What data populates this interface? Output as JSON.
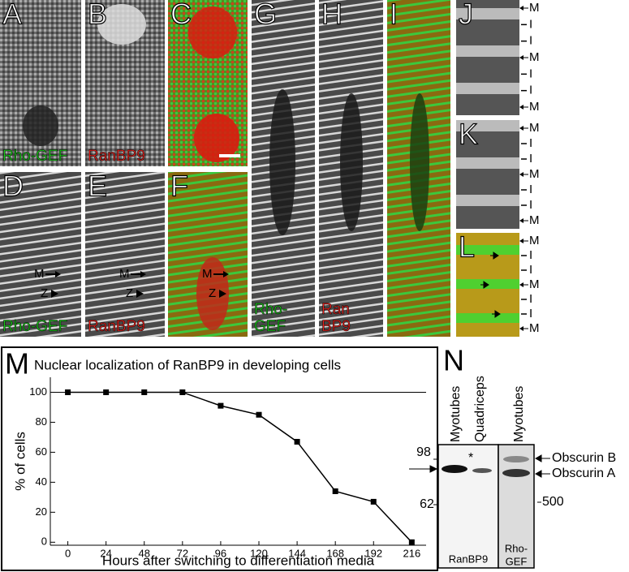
{
  "panels": [
    {
      "letter": "A",
      "labels": [
        "Rho-GEF"
      ]
    },
    {
      "letter": "B",
      "labels": [
        "RanBP9"
      ]
    },
    {
      "letter": "C"
    },
    {
      "letter": "D",
      "labels": [
        "Rho-GEF"
      ],
      "markers": [
        "M",
        "Z"
      ]
    },
    {
      "letter": "E",
      "labels": [
        "RanBP9"
      ],
      "markers": [
        "M",
        "Z"
      ]
    },
    {
      "letter": "F",
      "markers": [
        "M",
        "Z"
      ]
    },
    {
      "letter": "G",
      "labels": [
        "Rho-",
        "GEF"
      ]
    },
    {
      "letter": "H",
      "labels": [
        "Ran",
        "BP9"
      ]
    },
    {
      "letter": "I"
    },
    {
      "letter": "J",
      "bands": [
        "M",
        "I",
        "I",
        "M",
        "I",
        "I",
        "M"
      ]
    },
    {
      "letter": "K",
      "bands": [
        "M",
        "I",
        "I",
        "M",
        "I",
        "I",
        "M"
      ]
    },
    {
      "letter": "L",
      "bands": [
        "M",
        "I",
        "I",
        "M",
        "I",
        "I",
        "M"
      ]
    }
  ],
  "chart_data": {
    "type": "line",
    "panel": "M",
    "title": "Nuclear localization of RanBP9 in developing cells",
    "x_label": "Hours after switching to differentiation media",
    "y_label": "% of cells",
    "x": [
      0,
      24,
      48,
      72,
      96,
      120,
      144,
      168,
      192,
      216
    ],
    "values": [
      100,
      100,
      100,
      100,
      91,
      85,
      67,
      34,
      27,
      0
    ],
    "color": "#000000",
    "xlim": [
      -11,
      225
    ],
    "ylim": [
      -2,
      110
    ],
    "xticks": [
      0,
      24,
      48,
      72,
      96,
      120,
      144,
      168,
      192,
      216
    ],
    "yticks": [
      0,
      20,
      40,
      60,
      80,
      100
    ],
    "reference_line": 100
  },
  "blot": {
    "letter": "N",
    "lanes": [
      "Myotubes",
      "Quadriceps",
      "Myotubes"
    ],
    "markers_left": [
      "98",
      "62"
    ],
    "marker_right": "500",
    "bands": [
      "Obscurin B",
      "Obscurin A"
    ],
    "asterisk": "*",
    "antibodies": [
      [
        "RanBP9"
      ],
      [
        "Rho-",
        "GEF"
      ]
    ]
  }
}
